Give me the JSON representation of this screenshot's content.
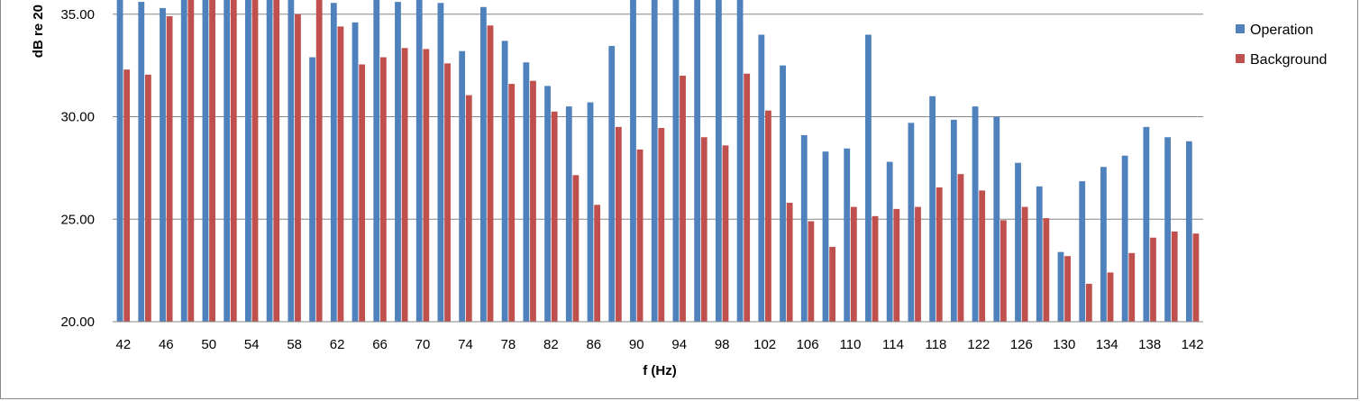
{
  "chart_data": {
    "type": "bar",
    "title": "",
    "xlabel": "f (Hz)",
    "ylabel": "dB re 20",
    "ylim": [
      20,
      36.7
    ],
    "yticks": [
      "20.00",
      "25.00",
      "30.00",
      "35.00"
    ],
    "ytick_values": [
      20,
      25,
      30,
      35
    ],
    "xtick_labels": [
      "42",
      "46",
      "50",
      "54",
      "58",
      "62",
      "66",
      "70",
      "74",
      "78",
      "82",
      "86",
      "90",
      "94",
      "98",
      "102",
      "106",
      "110",
      "114",
      "118",
      "122",
      "126",
      "130",
      "134",
      "138",
      "142"
    ],
    "categories": [
      42,
      44,
      46,
      48,
      50,
      52,
      54,
      56,
      58,
      60,
      62,
      64,
      66,
      68,
      70,
      72,
      74,
      76,
      78,
      80,
      82,
      84,
      86,
      88,
      90,
      92,
      94,
      96,
      98,
      100,
      102,
      104,
      106,
      108,
      110,
      112,
      114,
      116,
      118,
      120,
      122,
      124,
      126,
      128,
      130,
      132,
      134,
      136,
      138,
      140,
      142
    ],
    "grid": true,
    "legend_position": "right",
    "colors": {
      "Operation": "#4f81bd",
      "Background": "#c0504d"
    },
    "series": [
      {
        "name": "Operation",
        "values": [
          36.5,
          35.6,
          35.3,
          36.5,
          36.5,
          36.5,
          36.5,
          36.5,
          36.5,
          32.9,
          35.55,
          34.6,
          36.5,
          35.6,
          36.5,
          35.55,
          33.2,
          35.35,
          33.7,
          32.65,
          31.5,
          30.5,
          30.7,
          33.45,
          36.5,
          36.5,
          36.5,
          36.5,
          36.5,
          36.5,
          34.0,
          32.5,
          29.1,
          28.3,
          28.45,
          34.0,
          27.8,
          29.7,
          31.0,
          29.85,
          30.5,
          30.0,
          27.75,
          26.6,
          23.4,
          26.85,
          27.55,
          28.1,
          29.5,
          29.0,
          28.8
        ]
      },
      {
        "name": "Background",
        "values": [
          32.3,
          32.05,
          34.9,
          36.5,
          36.5,
          36.5,
          36.5,
          36.5,
          35.0,
          35.7,
          34.4,
          32.55,
          32.9,
          33.35,
          33.3,
          32.6,
          31.05,
          34.45,
          31.6,
          31.75,
          30.25,
          27.15,
          25.7,
          29.5,
          28.4,
          29.45,
          32.0,
          29.0,
          28.6,
          32.1,
          30.3,
          25.8,
          24.9,
          23.65,
          25.6,
          25.15,
          25.5,
          25.6,
          26.55,
          27.2,
          26.4,
          24.95,
          25.6,
          25.05,
          23.2,
          21.85,
          22.4,
          23.35,
          24.1,
          24.4,
          24.3
        ]
      }
    ]
  }
}
